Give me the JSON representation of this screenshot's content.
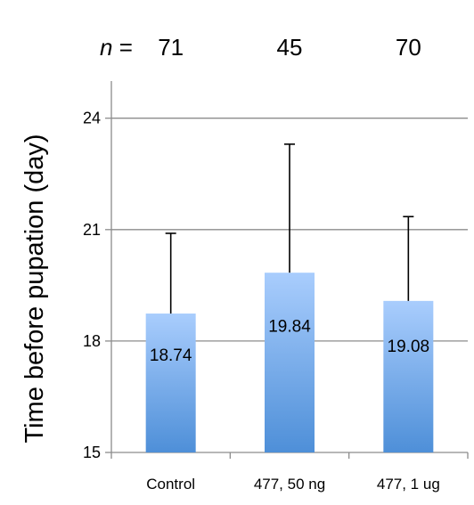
{
  "header": {
    "n_label": "n",
    "n_equals": " = "
  },
  "chart_data": {
    "type": "bar",
    "title": "",
    "xlabel": "",
    "ylabel": "Time before pupation (day)",
    "categories": [
      "Control",
      "477, 50 ng",
      "477, 1 ug"
    ],
    "values": [
      18.74,
      19.84,
      19.08
    ],
    "data_labels": [
      "18.74",
      "19.84",
      "19.08"
    ],
    "n_values": [
      "71",
      "45",
      "70"
    ],
    "error_upper": [
      20.9,
      23.3,
      21.35
    ],
    "ylim": [
      15,
      25
    ],
    "yticks": [
      "15",
      "18",
      "21",
      "24"
    ],
    "grid": true,
    "legend": "none",
    "bar_gradient": [
      "#a9cdfd",
      "#4e8fd8"
    ]
  }
}
